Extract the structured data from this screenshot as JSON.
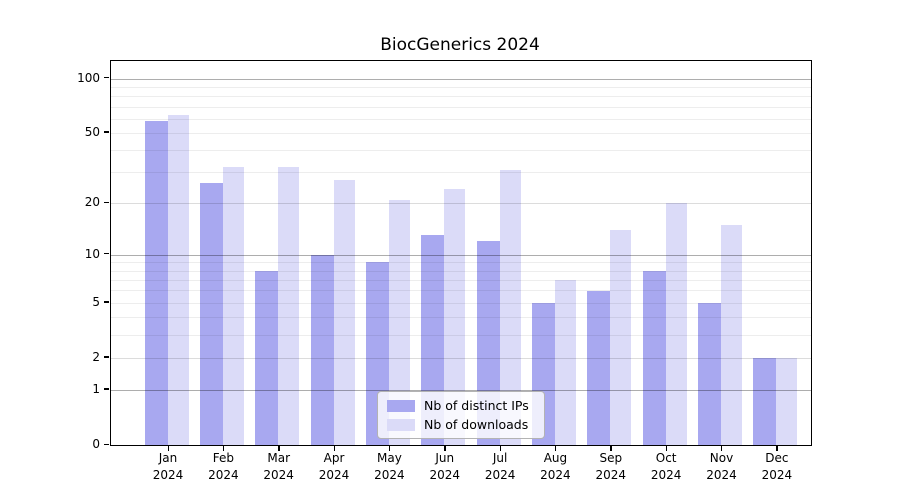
{
  "chart_data": {
    "type": "bar",
    "title": "BiocGenerics 2024",
    "year": "2024",
    "categories": [
      "Jan",
      "Feb",
      "Mar",
      "Apr",
      "May",
      "Jun",
      "Jul",
      "Aug",
      "Sep",
      "Oct",
      "Nov",
      "Dec"
    ],
    "series": [
      {
        "name": "Nb of distinct IPs",
        "color": "#a8a8f0",
        "values": [
          58,
          26,
          8,
          10,
          9,
          13,
          12,
          5,
          6,
          8,
          5,
          2
        ]
      },
      {
        "name": "Nb of downloads",
        "color": "#dbdbf8",
        "values": [
          63,
          32,
          32,
          27,
          21,
          24,
          31,
          7,
          14,
          20,
          15,
          2
        ]
      }
    ],
    "yscale": "log1p",
    "yticks": [
      0,
      1,
      2,
      5,
      10,
      20,
      50,
      100
    ],
    "ylim": [
      0,
      125
    ],
    "grid": {
      "major": [
        1,
        10,
        100
      ],
      "minor": [
        2,
        3,
        4,
        6,
        7,
        8,
        9,
        20,
        30,
        40,
        60,
        70,
        80,
        90
      ],
      "minor_labeled": [
        2,
        5,
        20,
        50
      ]
    },
    "legend_position": "inside-bottom-center",
    "xlabel": "",
    "ylabel": ""
  }
}
